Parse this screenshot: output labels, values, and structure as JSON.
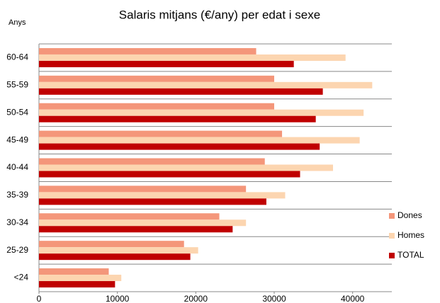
{
  "chart_data": {
    "type": "bar",
    "orientation": "horizontal",
    "title": "Salaris mitjans (€/any) per edat i sexe",
    "y_label": "Anys",
    "categories": [
      "<24",
      "25-29",
      "30-34",
      "35-39",
      "40-44",
      "45-49",
      "50-54",
      "55-59",
      "60-64"
    ],
    "series": [
      {
        "name": "Dones",
        "color": "#f4967a",
        "values": [
          8900,
          18500,
          23000,
          26400,
          28800,
          31000,
          30000,
          30000,
          27700
        ]
      },
      {
        "name": "Homes",
        "color": "#fcd5b0",
        "values": [
          10500,
          20300,
          26400,
          31400,
          37500,
          40900,
          41400,
          42500,
          39100
        ]
      },
      {
        "name": "TOTAL",
        "color": "#c00000",
        "values": [
          9700,
          19300,
          24700,
          29000,
          33300,
          35800,
          35300,
          36200,
          32500
        ]
      }
    ],
    "xlim": [
      0,
      45000
    ],
    "xticks": [
      0,
      10000,
      20000,
      30000,
      40000
    ],
    "legend": "right",
    "grid": false
  }
}
